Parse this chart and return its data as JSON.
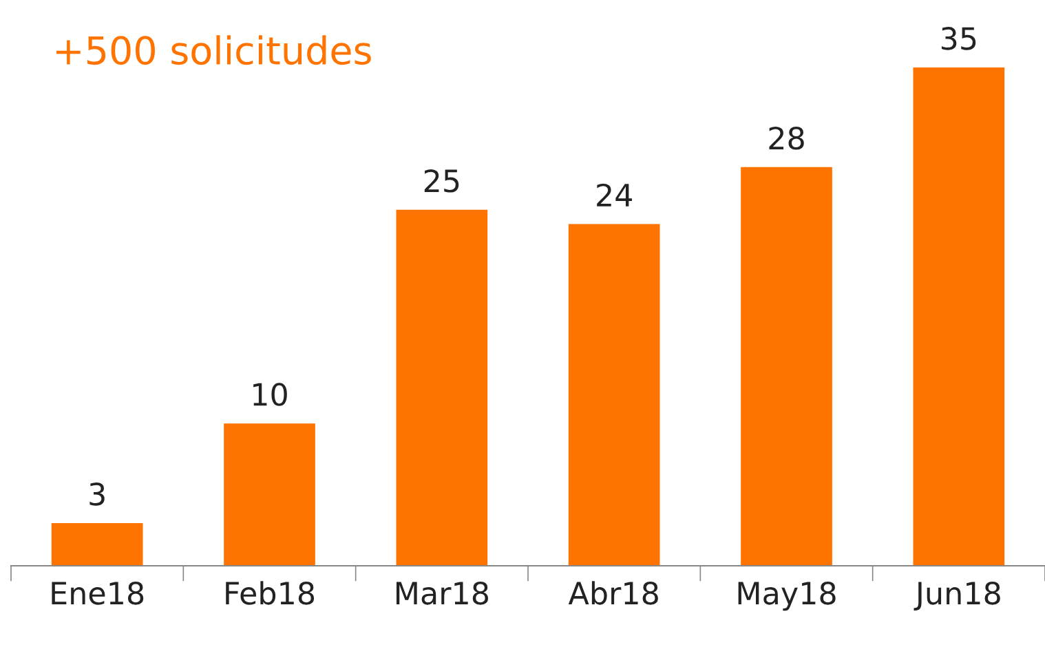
{
  "chart_data": {
    "type": "bar",
    "categories": [
      "Ene18",
      "Feb18",
      "Mar18",
      "Abr18",
      "May18",
      "Jun18"
    ],
    "values": [
      3,
      10,
      25,
      24,
      28,
      35
    ],
    "color": "#ff7300",
    "data_labels": true,
    "grid": false,
    "legend": false,
    "annotations": [
      "+500 solicitudes"
    ]
  }
}
